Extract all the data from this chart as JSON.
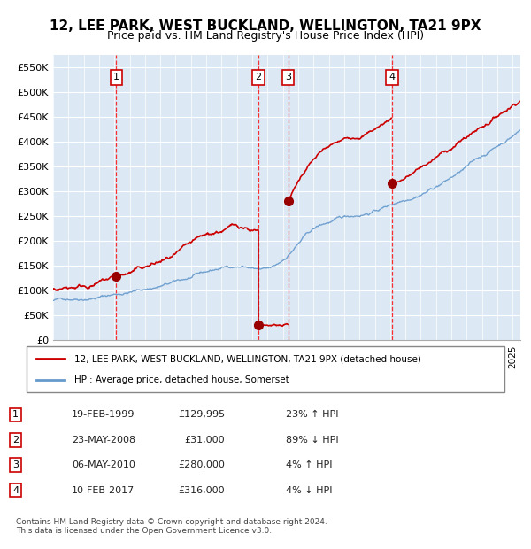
{
  "title": "12, LEE PARK, WEST BUCKLAND, WELLINGTON, TA21 9PX",
  "subtitle": "Price paid vs. HM Land Registry's House Price Index (HPI)",
  "hpi_color": "#6699cc",
  "price_color": "#cc0000",
  "bg_color": "#dce9f5",
  "grid_color": "#ffffff",
  "ylim": [
    0,
    575000
  ],
  "yticks": [
    0,
    50000,
    100000,
    150000,
    200000,
    250000,
    300000,
    350000,
    400000,
    450000,
    500000,
    550000
  ],
  "xlim_start": 1995.0,
  "xlim_end": 2025.5,
  "transactions": [
    {
      "num": 1,
      "date_decimal": 1999.13,
      "price": 129995,
      "label": "1"
    },
    {
      "num": 2,
      "date_decimal": 2008.39,
      "price": 31000,
      "label": "2"
    },
    {
      "num": 3,
      "date_decimal": 2010.34,
      "price": 280000,
      "label": "3"
    },
    {
      "num": 4,
      "date_decimal": 2017.11,
      "price": 316000,
      "label": "4"
    }
  ],
  "legend_entries": [
    {
      "label": "12, LEE PARK, WEST BUCKLAND, WELLINGTON, TA21 9PX (detached house)",
      "color": "#cc0000"
    },
    {
      "label": "HPI: Average price, detached house, Somerset",
      "color": "#6699cc"
    }
  ],
  "table_rows": [
    {
      "num": 1,
      "date": "19-FEB-1999",
      "price": "£129,995",
      "hpi": "23% ↑ HPI"
    },
    {
      "num": 2,
      "date": "23-MAY-2008",
      "price": "£31,000",
      "hpi": "89% ↓ HPI"
    },
    {
      "num": 3,
      "date": "06-MAY-2010",
      "price": "£280,000",
      "hpi": "4% ↑ HPI"
    },
    {
      "num": 4,
      "date": "10-FEB-2017",
      "price": "£316,000",
      "hpi": "4% ↓ HPI"
    }
  ],
  "footer": "Contains HM Land Registry data © Crown copyright and database right 2024.\nThis data is licensed under the Open Government Licence v3.0."
}
